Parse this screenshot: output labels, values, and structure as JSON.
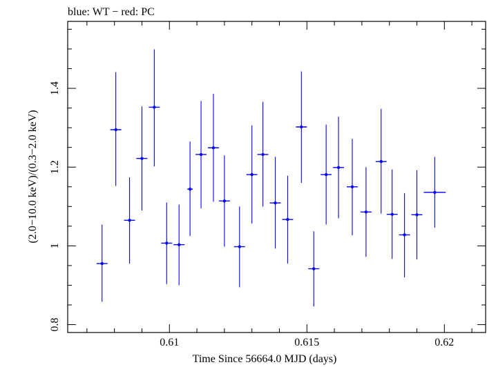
{
  "chart_data": {
    "type": "scatter",
    "title": "blue: WT − red: PC",
    "xlabel": "Time Since 56664.0 MJD (days)",
    "ylabel": "(2.0−10.0 keV)/(0.3−2.0 keV)",
    "xlim": [
      0.6063,
      0.6215
    ],
    "ylim": [
      0.78,
      1.57
    ],
    "x_ticks": [
      0.61,
      0.615,
      0.62
    ],
    "x_tick_labels": [
      "0.61",
      "0.615",
      "0.62"
    ],
    "y_ticks": [
      0.8,
      1.0,
      1.2,
      1.4
    ],
    "y_tick_labels": [
      "0.8",
      "1",
      "1.2",
      "1.4"
    ],
    "grid": false,
    "series": [
      {
        "color": "#0000ff",
        "points": [
          {
            "x": 0.60755,
            "y": 0.955,
            "xerr": 0.0002,
            "ylo": 0.858,
            "yhi": 1.054
          },
          {
            "x": 0.60805,
            "y": 1.295,
            "xerr": 0.0002,
            "ylo": 1.152,
            "yhi": 1.441
          },
          {
            "x": 0.60855,
            "y": 1.065,
            "xerr": 0.0002,
            "ylo": 0.955,
            "yhi": 1.174
          },
          {
            "x": 0.609,
            "y": 1.222,
            "xerr": 0.0002,
            "ylo": 1.09,
            "yhi": 1.354
          },
          {
            "x": 0.60945,
            "y": 1.352,
            "xerr": 0.0002,
            "ylo": 1.202,
            "yhi": 1.499
          },
          {
            "x": 0.6099,
            "y": 1.007,
            "xerr": 0.0002,
            "ylo": 0.903,
            "yhi": 1.11
          },
          {
            "x": 0.61035,
            "y": 1.003,
            "xerr": 0.0002,
            "ylo": 0.9,
            "yhi": 1.105
          },
          {
            "x": 0.61075,
            "y": 1.144,
            "xerr": 0.0001,
            "ylo": 1.025,
            "yhi": 1.265
          },
          {
            "x": 0.61115,
            "y": 1.232,
            "xerr": 0.0002,
            "ylo": 1.095,
            "yhi": 1.368
          },
          {
            "x": 0.6116,
            "y": 1.249,
            "xerr": 0.0002,
            "ylo": 1.112,
            "yhi": 1.386
          },
          {
            "x": 0.612,
            "y": 1.114,
            "xerr": 0.0002,
            "ylo": 0.998,
            "yhi": 1.23
          },
          {
            "x": 0.61255,
            "y": 0.998,
            "xerr": 0.0002,
            "ylo": 0.895,
            "yhi": 1.1
          },
          {
            "x": 0.613,
            "y": 1.181,
            "xerr": 0.0002,
            "ylo": 1.057,
            "yhi": 1.306
          },
          {
            "x": 0.6134,
            "y": 1.232,
            "xerr": 0.0002,
            "ylo": 1.1,
            "yhi": 1.366
          },
          {
            "x": 0.61385,
            "y": 1.109,
            "xerr": 0.0002,
            "ylo": 0.993,
            "yhi": 1.226
          },
          {
            "x": 0.6143,
            "y": 1.067,
            "xerr": 0.0002,
            "ylo": 0.955,
            "yhi": 1.178
          },
          {
            "x": 0.6148,
            "y": 1.302,
            "xerr": 0.0002,
            "ylo": 1.16,
            "yhi": 1.443
          },
          {
            "x": 0.61525,
            "y": 0.942,
            "xerr": 0.0002,
            "ylo": 0.846,
            "yhi": 1.037
          },
          {
            "x": 0.6157,
            "y": 1.181,
            "xerr": 0.0002,
            "ylo": 1.054,
            "yhi": 1.308
          },
          {
            "x": 0.61615,
            "y": 1.199,
            "xerr": 0.0002,
            "ylo": 1.07,
            "yhi": 1.328
          },
          {
            "x": 0.61665,
            "y": 1.15,
            "xerr": 0.0002,
            "ylo": 1.027,
            "yhi": 1.272
          },
          {
            "x": 0.61715,
            "y": 1.086,
            "xerr": 0.0002,
            "ylo": 0.972,
            "yhi": 1.2
          },
          {
            "x": 0.6177,
            "y": 1.214,
            "xerr": 0.0002,
            "ylo": 1.082,
            "yhi": 1.348
          },
          {
            "x": 0.6181,
            "y": 1.08,
            "xerr": 0.0002,
            "ylo": 0.967,
            "yhi": 1.194
          },
          {
            "x": 0.61855,
            "y": 1.028,
            "xerr": 0.0002,
            "ylo": 0.92,
            "yhi": 1.134
          },
          {
            "x": 0.619,
            "y": 1.079,
            "xerr": 0.0002,
            "ylo": 0.966,
            "yhi": 1.192
          },
          {
            "x": 0.61965,
            "y": 1.136,
            "xerr": 0.0004,
            "ylo": 1.046,
            "yhi": 1.226
          }
        ]
      }
    ]
  }
}
